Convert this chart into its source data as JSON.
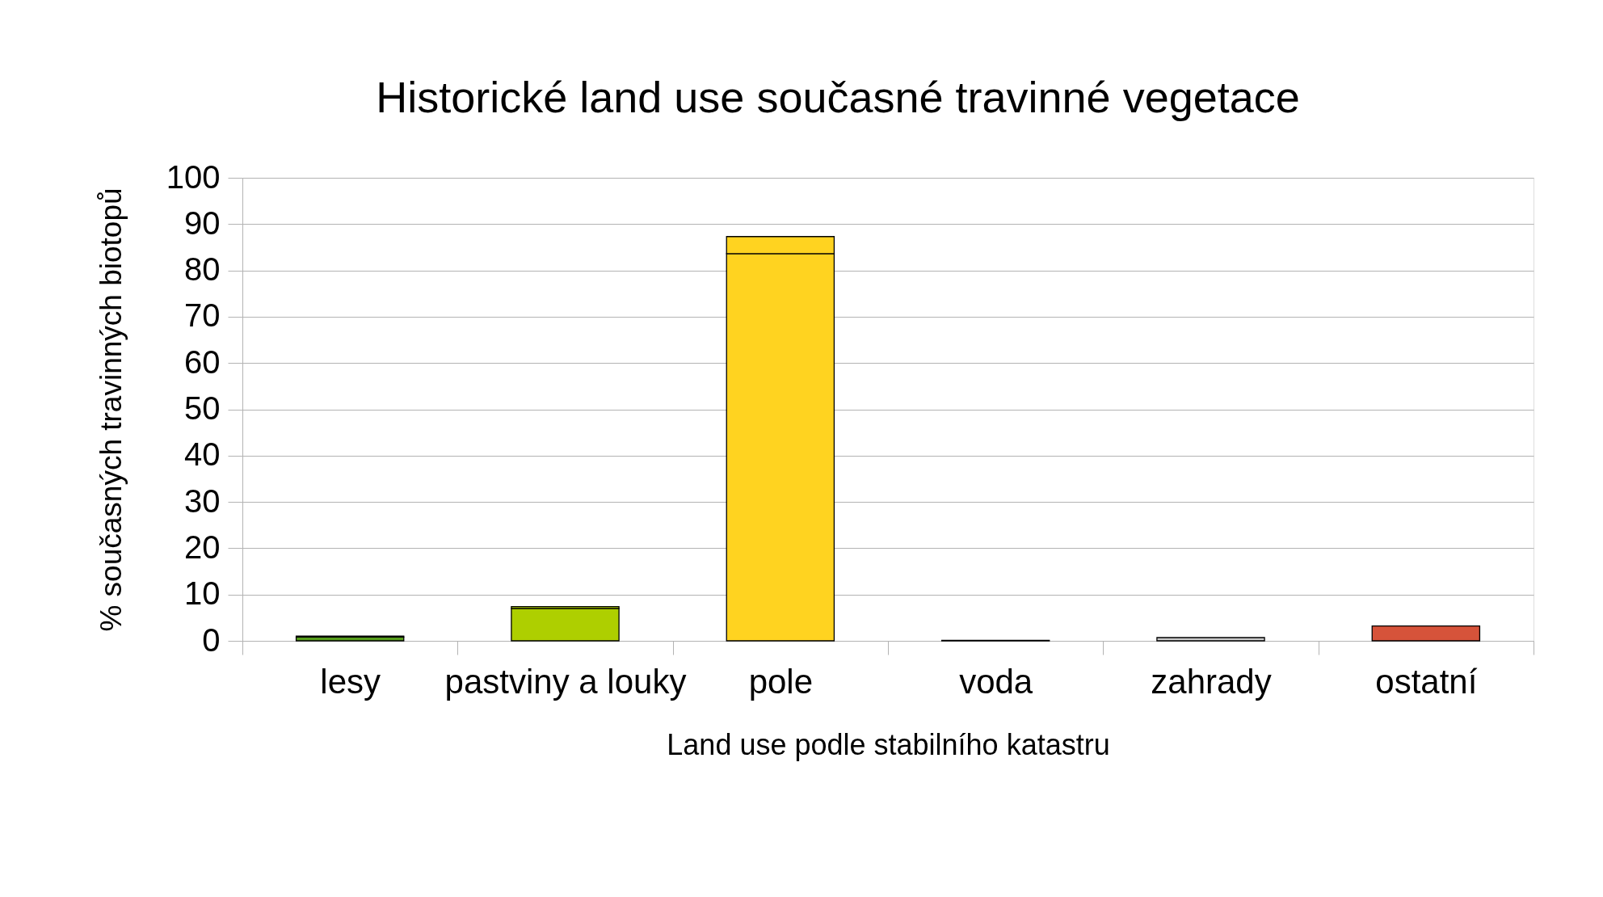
{
  "chart_data": {
    "type": "bar",
    "title": "Historické land use současné travinné vegetace",
    "xlabel": "Land use podle stabilního katastru",
    "ylabel": "% současných travinných biotopů",
    "categories": [
      "lesy",
      "pastviny a louky",
      "pole",
      "voda",
      "zahrady",
      "ostatní"
    ],
    "stacked": true,
    "series": [
      {
        "colors": [
          "#579d1c",
          "#aecf00",
          "#ffd320",
          "#004586",
          "#cccccc",
          "#d6533a"
        ],
        "values": [
          0.8,
          7.0,
          83.6,
          0.1,
          0.7,
          3.2
        ]
      },
      {
        "colors": [
          "#579d1c",
          "#aecf00",
          "#ffd320",
          "#004586",
          "#cccccc",
          "#d6533a"
        ],
        "values": [
          0.2,
          0.4,
          3.7,
          null,
          null,
          null
        ]
      }
    ],
    "ylim": [
      0,
      100
    ],
    "yticks": [
      0,
      10,
      20,
      30,
      40,
      50,
      60,
      70,
      80,
      90,
      100
    ],
    "grid": "y"
  }
}
